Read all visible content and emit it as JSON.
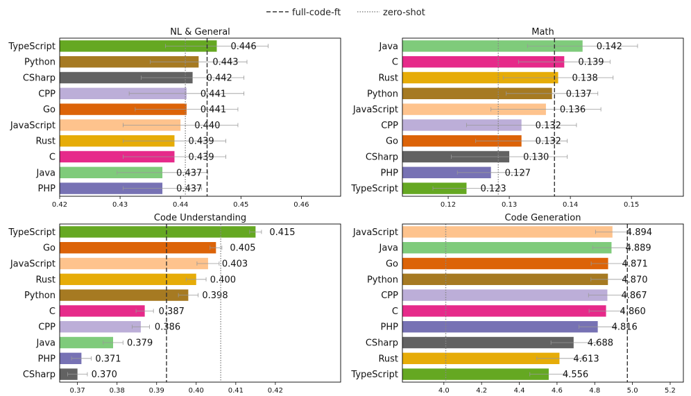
{
  "legend": {
    "full_code_ft": "full-code-ft",
    "zero_shot": "zero-shot"
  },
  "colors": {
    "TypeScript": "#65a822",
    "Python": "#a67a22",
    "CSharp": "#626262",
    "CPP": "#bcaed8",
    "Go": "#dc6308",
    "JavaScript": "#fec38d",
    "Rust": "#e6ac08",
    "C": "#e62a8a",
    "Java": "#7fcb7b",
    "PHP": "#7772b4"
  },
  "chart_data": [
    {
      "type": "bar",
      "orientation": "horizontal",
      "title": "NL & General",
      "categories": [
        "TypeScript",
        "Python",
        "CSharp",
        "CPP",
        "Go",
        "JavaScript",
        "Rust",
        "C",
        "Java",
        "PHP"
      ],
      "values": [
        0.446,
        0.443,
        0.442,
        0.441,
        0.441,
        0.44,
        0.439,
        0.439,
        0.437,
        0.437
      ],
      "value_labels": [
        "0.446",
        "0.443",
        "0.442",
        "0.441",
        "0.441",
        "0.440",
        "0.439",
        "0.439",
        "0.437",
        "0.437"
      ],
      "errors": [
        0.0085,
        0.008,
        0.0085,
        0.0095,
        0.0085,
        0.0095,
        0.0085,
        0.0085,
        0.0075,
        0.0065
      ],
      "xlim": [
        0.42,
        0.4665
      ],
      "xticks": [
        0.42,
        0.43,
        0.44,
        0.45,
        0.46
      ],
      "xtick_labels": [
        "0.42",
        "0.43",
        "0.44",
        "0.45",
        "0.46"
      ],
      "full_code_ft": 0.4444,
      "zero_shot": 0.4408
    },
    {
      "type": "bar",
      "orientation": "horizontal",
      "title": "Math",
      "categories": [
        "Java",
        "C",
        "Rust",
        "Python",
        "JavaScript",
        "CPP",
        "Go",
        "CSharp",
        "PHP",
        "TypeScript"
      ],
      "values": [
        0.142,
        0.139,
        0.138,
        0.137,
        0.136,
        0.132,
        0.132,
        0.13,
        0.127,
        0.123
      ],
      "value_labels": [
        "0.142",
        "0.139",
        "0.138",
        "0.137",
        "0.136",
        "0.132",
        "0.132",
        "0.130",
        "0.127",
        "0.123"
      ],
      "errors": [
        0.009,
        0.0075,
        0.009,
        0.0075,
        0.009,
        0.009,
        0.0075,
        0.0095,
        0.0055,
        0.0055
      ],
      "xlim": [
        0.1125,
        0.1585
      ],
      "xticks": [
        0.12,
        0.13,
        0.14,
        0.15
      ],
      "xtick_labels": [
        "0.12",
        "0.13",
        "0.14",
        "0.15"
      ],
      "full_code_ft": 0.1374,
      "zero_shot": 0.1282
    },
    {
      "type": "bar",
      "orientation": "horizontal",
      "title": "Code Understanding",
      "categories": [
        "TypeScript",
        "Go",
        "JavaScript",
        "Rust",
        "Python",
        "C",
        "CPP",
        "Java",
        "PHP",
        "CSharp"
      ],
      "values": [
        0.415,
        0.405,
        0.403,
        0.4,
        0.398,
        0.387,
        0.386,
        0.379,
        0.371,
        0.37
      ],
      "value_labels": [
        "0.415",
        "0.405",
        "0.403",
        "0.400",
        "0.398",
        "0.387",
        "0.386",
        "0.379",
        "0.371",
        "0.370"
      ],
      "errors": [
        0.0015,
        0.0015,
        0.0028,
        0.0025,
        0.0025,
        0.0022,
        0.0022,
        0.0025,
        0.0025,
        0.0025
      ],
      "xlim": [
        0.3655,
        0.4365
      ],
      "xticks": [
        0.37,
        0.38,
        0.39,
        0.4,
        0.41,
        0.42
      ],
      "xtick_labels": [
        "0.37",
        "0.38",
        "0.39",
        "0.40",
        "0.41",
        "0.42"
      ],
      "full_code_ft": 0.3925,
      "zero_shot": 0.4062
    },
    {
      "type": "bar",
      "orientation": "horizontal",
      "title": "Code Generation",
      "categories": [
        "JavaScript",
        "Java",
        "Go",
        "Python",
        "CPP",
        "C",
        "PHP",
        "CSharp",
        "Rust",
        "TypeScript"
      ],
      "values": [
        4.894,
        4.889,
        4.871,
        4.87,
        4.867,
        4.86,
        4.816,
        4.688,
        4.613,
        4.556
      ],
      "value_labels": [
        "4.894",
        "4.889",
        "4.871",
        "4.870",
        "4.867",
        "4.860",
        "4.816",
        "4.688",
        "4.613",
        "4.556"
      ],
      "errors": [
        0.09,
        0.1,
        0.09,
        0.09,
        0.1,
        0.09,
        0.1,
        0.12,
        0.12,
        0.1
      ],
      "xlim": [
        3.78,
        5.27
      ],
      "xticks": [
        4.0,
        4.2,
        4.4,
        4.6,
        4.8,
        5.0,
        5.2
      ],
      "xtick_labels": [
        "4.0",
        "4.2",
        "4.4",
        "4.6",
        "4.8",
        "5.0",
        "5.2"
      ],
      "full_code_ft": 4.973,
      "zero_shot": 4.01
    }
  ]
}
